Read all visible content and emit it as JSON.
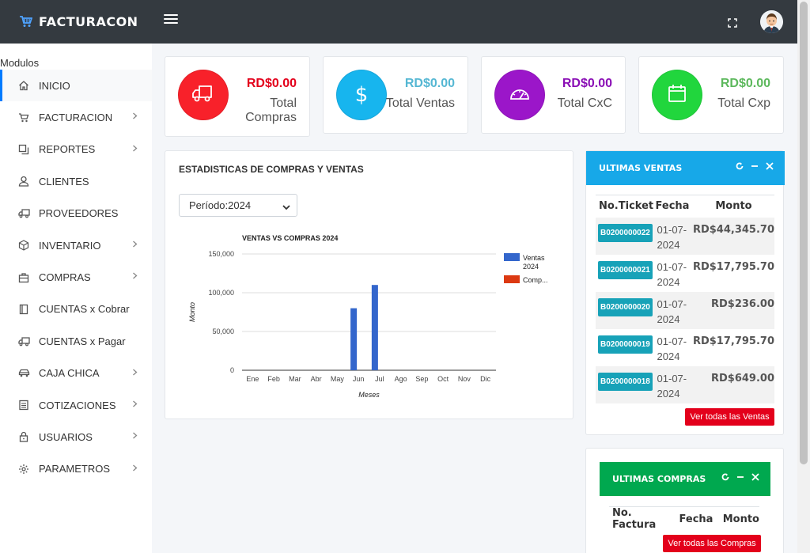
{
  "app": {
    "title": "FACTURACON"
  },
  "sidebar": {
    "header": "Modulos",
    "items": [
      {
        "label": "INICIO",
        "icon": "home-icon",
        "has_children": false,
        "active": true
      },
      {
        "label": "FACTURACION",
        "icon": "cart-icon",
        "has_children": true
      },
      {
        "label": "REPORTES",
        "icon": "copy-icon",
        "has_children": true
      },
      {
        "label": "CLIENTES",
        "icon": "user-icon",
        "has_children": false
      },
      {
        "label": "PROVEEDORES",
        "icon": "truck-icon",
        "has_children": false
      },
      {
        "label": "INVENTARIO",
        "icon": "box-icon",
        "has_children": true
      },
      {
        "label": "COMPRAS",
        "icon": "briefcase-icon",
        "has_children": true
      },
      {
        "label": "CUENTAS x Cobrar",
        "icon": "book-icon",
        "has_children": false
      },
      {
        "label": "CUENTAS x Pagar",
        "icon": "truck-icon",
        "has_children": false
      },
      {
        "label": "CAJA CHICA",
        "icon": "car-icon",
        "has_children": true
      },
      {
        "label": "COTIZACIONES",
        "icon": "ledger-icon",
        "has_children": true
      },
      {
        "label": "USUARIOS",
        "icon": "lock-icon",
        "has_children": true
      },
      {
        "label": "PARAMETROS",
        "icon": "gear-icon",
        "has_children": true
      }
    ]
  },
  "stats": [
    {
      "amount": "RD$0.00",
      "label": "Total Compras",
      "color": "#f8212a",
      "amount_color": "#e3001b",
      "icon": "truck-icon"
    },
    {
      "amount": "RD$0.00",
      "label": "Total Ventas",
      "color": "#17b5ee",
      "amount_color": "#55b7d3",
      "icon": "dollar-icon"
    },
    {
      "amount": "RD$0.00",
      "label": "Total CxC",
      "color": "#9b16c9",
      "amount_color": "#8a0eb5",
      "icon": "gauge-icon"
    },
    {
      "amount": "RD$0.00",
      "label": "Total Cxp",
      "color": "#21d63d",
      "amount_color": "#5cb85c",
      "icon": "calendar-icon"
    }
  ],
  "chart_card": {
    "title": "ESTADISTICAS DE COMPRAS Y VENTAS",
    "period": "Período:2024"
  },
  "chart_data": {
    "type": "bar",
    "title": "VENTAS VS COMPRAS 2024",
    "xlabel": "Meses",
    "ylabel": "Monto",
    "categories": [
      "Ene",
      "Feb",
      "Mar",
      "Abr",
      "May",
      "Jun",
      "Jul",
      "Ago",
      "Sep",
      "Oct",
      "Nov",
      "Dic"
    ],
    "series": [
      {
        "name": "Ventas 2024",
        "color": "#3366cc",
        "values": [
          0,
          0,
          0,
          0,
          0,
          80000,
          110000,
          0,
          0,
          0,
          0,
          0
        ]
      },
      {
        "name": "Comp...",
        "color": "#dc3912",
        "values": [
          0,
          0,
          0,
          0,
          0,
          0,
          0,
          0,
          0,
          0,
          0,
          0
        ]
      }
    ],
    "ylim": [
      0,
      150000
    ],
    "yticks": [
      "0",
      "50,000",
      "100,000",
      "150,000"
    ],
    "grid": true,
    "legend": "right"
  },
  "ventas_panel": {
    "title": "ULTIMAS VENTAS",
    "color": "#17a8e8",
    "columns": [
      "No.Ticket",
      "Fecha",
      "Monto"
    ],
    "rows": [
      {
        "ticket": "B0200000022",
        "fecha": "01-07-2024",
        "monto": "RD$44,345.70"
      },
      {
        "ticket": "B0200000021",
        "fecha": "01-07-2024",
        "monto": "RD$17,795.70"
      },
      {
        "ticket": "B0200000020",
        "fecha": "01-07-2024",
        "monto": "RD$236.00"
      },
      {
        "ticket": "B0200000019",
        "fecha": "01-07-2024",
        "monto": "RD$17,795.70"
      },
      {
        "ticket": "B0200000018",
        "fecha": "01-07-2024",
        "monto": "RD$649.00"
      }
    ],
    "button": "Ver todas las Ventas"
  },
  "compras_panel": {
    "title": "ULTIMAS COMPRAS",
    "color": "#00a84f",
    "columns": [
      "No. Factura",
      "Fecha",
      "Monto"
    ],
    "button": "Ver todas las Compras"
  }
}
